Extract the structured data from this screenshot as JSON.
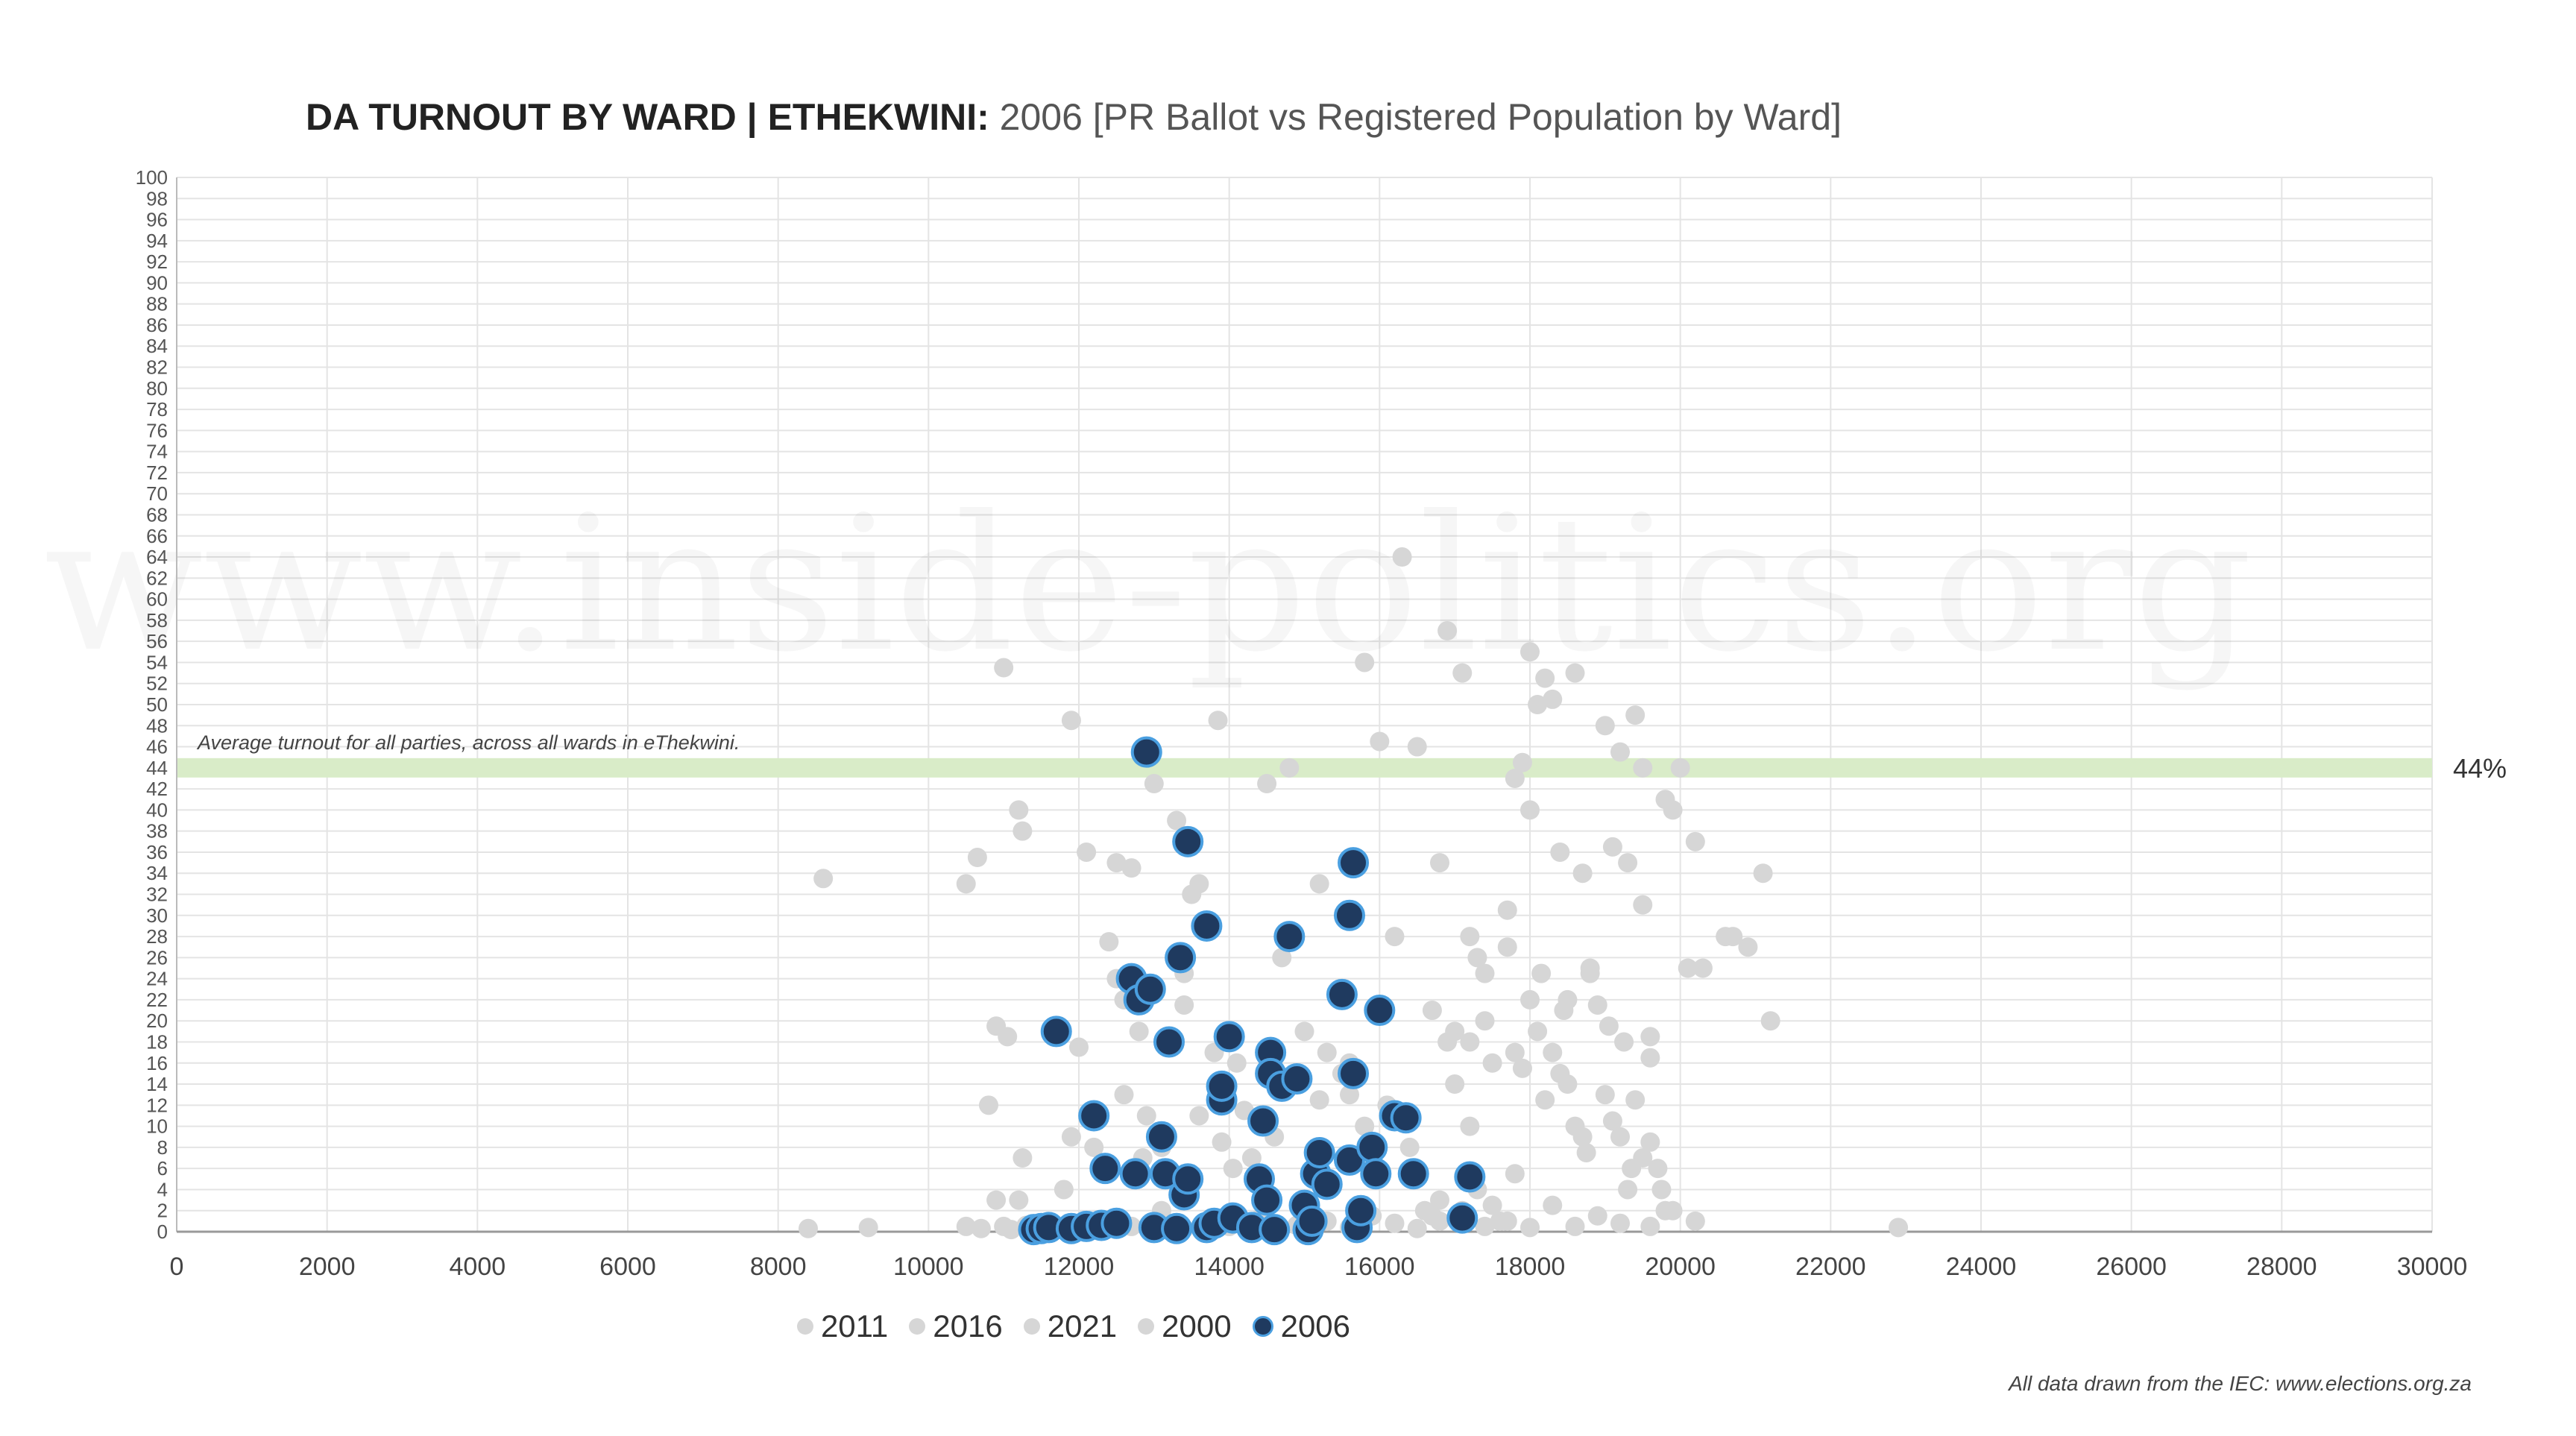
{
  "title": {
    "main": "DA TURNOUT BY WARD | ETHEKWINI:",
    "sub": "2006 [PR Ballot vs Registered Population by Ward]"
  },
  "watermark": "www.inside-politics.org",
  "source_note": "All data drawn from the IEC: www.elections.org.za",
  "average_line": {
    "label": "Average turnout for all parties, across all wards in eThekwini.",
    "value_label": "44%",
    "color": "#d9ecc8"
  },
  "colors": {
    "background_series": "#d6d6d6",
    "highlight_fill": "#1f3a5f",
    "highlight_stroke": "#4a9fe0",
    "grid": "#e4e4e4",
    "axis_text": "#555555"
  },
  "chart_data": {
    "type": "scatter",
    "title": "DA TURNOUT BY WARD | ETHEKWINI: 2006 [PR Ballot vs Registered Population by Ward]",
    "xlim": [
      0,
      30000
    ],
    "ylim": [
      0,
      100
    ],
    "x_ticks": [
      0,
      2000,
      4000,
      6000,
      8000,
      10000,
      12000,
      14000,
      16000,
      18000,
      20000,
      22000,
      24000,
      26000,
      28000,
      30000
    ],
    "y_ticks": [
      0,
      2,
      4,
      6,
      8,
      10,
      12,
      14,
      16,
      18,
      20,
      22,
      24,
      26,
      28,
      30,
      32,
      34,
      36,
      38,
      40,
      42,
      44,
      46,
      48,
      50,
      52,
      54,
      56,
      58,
      60,
      62,
      64,
      66,
      68,
      70,
      72,
      74,
      76,
      78,
      80,
      82,
      84,
      86,
      88,
      90,
      92,
      94,
      96,
      98,
      100
    ],
    "grid": true,
    "legend_position": "bottom",
    "reference_line": {
      "y": 44,
      "label": "44%"
    },
    "series": [
      {
        "name": "2011",
        "color": "#d6d6d6",
        "points": [
          [
            8400,
            0.3
          ],
          [
            9200,
            0.4
          ],
          [
            10500,
            0.5
          ],
          [
            10700,
            0.3
          ],
          [
            11000,
            0.5
          ],
          [
            11100,
            0.2
          ],
          [
            11250,
            7
          ],
          [
            11200,
            40
          ],
          [
            11250,
            38
          ],
          [
            11000,
            53.5
          ],
          [
            10800,
            12
          ],
          [
            10900,
            19.5
          ],
          [
            11050,
            18.5
          ],
          [
            10900,
            3
          ],
          [
            11200,
            3
          ],
          [
            11300,
            0.6
          ],
          [
            11450,
            0.4
          ],
          [
            11800,
            4
          ],
          [
            11900,
            9
          ],
          [
            12000,
            17.5
          ],
          [
            12100,
            36
          ],
          [
            12200,
            8
          ],
          [
            12400,
            27.5
          ],
          [
            12500,
            24
          ],
          [
            12500,
            35
          ],
          [
            12600,
            22
          ],
          [
            12700,
            34.5
          ],
          [
            12800,
            19
          ],
          [
            12850,
            7
          ],
          [
            12900,
            11
          ],
          [
            13000,
            42.5
          ],
          [
            13100,
            8
          ],
          [
            13200,
            5.5
          ],
          [
            13300,
            39
          ],
          [
            13400,
            24.5
          ],
          [
            13400,
            21.5
          ],
          [
            13500,
            32
          ],
          [
            13600,
            11
          ],
          [
            13800,
            17
          ],
          [
            13850,
            48.5
          ],
          [
            13900,
            8.5
          ],
          [
            14100,
            16
          ],
          [
            14200,
            11.5
          ],
          [
            14300,
            7
          ],
          [
            14500,
            42.5
          ],
          [
            14600,
            9
          ],
          [
            14700,
            26
          ],
          [
            14800,
            44
          ],
          [
            15000,
            19
          ],
          [
            15200,
            33
          ],
          [
            15300,
            17
          ],
          [
            15500,
            15
          ],
          [
            15600,
            13
          ],
          [
            15800,
            54
          ],
          [
            15800,
            10
          ],
          [
            16000,
            46.5
          ],
          [
            16200,
            28
          ],
          [
            16400,
            8
          ],
          [
            16500,
            46
          ],
          [
            16700,
            21
          ],
          [
            16800,
            35
          ],
          [
            16900,
            57
          ],
          [
            17100,
            53
          ],
          [
            17200,
            28
          ],
          [
            17300,
            26
          ],
          [
            17400,
            24.5
          ],
          [
            17500,
            16
          ],
          [
            17700,
            30.5
          ],
          [
            17800,
            43
          ],
          [
            17900,
            44.5
          ],
          [
            18000,
            40
          ]
        ]
      },
      {
        "name": "2016",
        "color": "#d6d6d6",
        "points": [
          [
            8600,
            33.5
          ],
          [
            10500,
            33
          ],
          [
            10650,
            35.5
          ],
          [
            11900,
            48.5
          ],
          [
            12600,
            13
          ],
          [
            13600,
            33
          ],
          [
            14050,
            6
          ],
          [
            14500,
            3.5
          ],
          [
            14800,
            14
          ],
          [
            15200,
            12.5
          ],
          [
            15300,
            5
          ],
          [
            15600,
            16
          ],
          [
            16100,
            12
          ],
          [
            16300,
            64
          ],
          [
            16600,
            2
          ],
          [
            16700,
            1.5
          ],
          [
            16800,
            3
          ],
          [
            16900,
            18
          ],
          [
            17000,
            19
          ],
          [
            17000,
            14
          ],
          [
            17200,
            18
          ],
          [
            17200,
            10
          ],
          [
            17300,
            4
          ],
          [
            17400,
            20
          ],
          [
            17500,
            2.5
          ],
          [
            17600,
            1
          ],
          [
            17800,
            5.5
          ],
          [
            18000,
            55
          ],
          [
            18100,
            50
          ],
          [
            18200,
            52.5
          ],
          [
            18300,
            50.5
          ],
          [
            18400,
            36
          ],
          [
            18500,
            22
          ],
          [
            18600,
            53
          ],
          [
            18700,
            34
          ],
          [
            18800,
            24.5
          ],
          [
            19000,
            48
          ],
          [
            19100,
            36.5
          ],
          [
            19200,
            45.5
          ],
          [
            19300,
            35
          ],
          [
            19400,
            49
          ],
          [
            19500,
            44
          ],
          [
            19500,
            31
          ],
          [
            19600,
            18.5
          ],
          [
            19600,
            16.5
          ],
          [
            19800,
            41
          ],
          [
            19900,
            40
          ],
          [
            20000,
            44
          ],
          [
            20100,
            25
          ],
          [
            20200,
            37
          ],
          [
            20300,
            25
          ],
          [
            20600,
            28
          ],
          [
            20700,
            28
          ],
          [
            20900,
            27
          ],
          [
            21100,
            34
          ],
          [
            21200,
            20
          ]
        ]
      },
      {
        "name": "2021",
        "color": "#d6d6d6",
        "points": [
          [
            11400,
            0.4
          ],
          [
            12100,
            0.8
          ],
          [
            12700,
            0.5
          ],
          [
            13100,
            2
          ],
          [
            13400,
            0.3
          ],
          [
            13700,
            1
          ],
          [
            14000,
            0.5
          ],
          [
            14400,
            1.2
          ],
          [
            14900,
            0.6
          ],
          [
            15300,
            1
          ],
          [
            15600,
            0.4
          ],
          [
            15900,
            1.5
          ],
          [
            16200,
            0.8
          ],
          [
            16500,
            0.3
          ],
          [
            16800,
            1
          ],
          [
            17100,
            2
          ],
          [
            17400,
            0.5
          ],
          [
            17700,
            1
          ],
          [
            18000,
            0.4
          ],
          [
            18300,
            2.5
          ],
          [
            18600,
            0.5
          ],
          [
            18900,
            1.5
          ],
          [
            19200,
            0.8
          ],
          [
            19600,
            0.5
          ],
          [
            19900,
            2
          ],
          [
            20200,
            1
          ],
          [
            22900,
            0.4
          ]
        ]
      },
      {
        "name": "2000",
        "color": "#d6d6d6",
        "points": [
          [
            17700,
            27
          ],
          [
            17800,
            17
          ],
          [
            17900,
            15.5
          ],
          [
            18000,
            22
          ],
          [
            18100,
            19
          ],
          [
            18150,
            24.5
          ],
          [
            18200,
            12.5
          ],
          [
            18300,
            17
          ],
          [
            18400,
            15
          ],
          [
            18450,
            21
          ],
          [
            18500,
            14
          ],
          [
            18600,
            10
          ],
          [
            18700,
            9
          ],
          [
            18750,
            7.5
          ],
          [
            18800,
            25
          ],
          [
            18900,
            21.5
          ],
          [
            19000,
            13
          ],
          [
            19050,
            19.5
          ],
          [
            19100,
            10.5
          ],
          [
            19200,
            9
          ],
          [
            19250,
            18
          ],
          [
            19300,
            4
          ],
          [
            19350,
            6
          ],
          [
            19400,
            12.5
          ],
          [
            19500,
            7
          ],
          [
            19600,
            8.5
          ],
          [
            19700,
            6
          ],
          [
            19750,
            4
          ],
          [
            19800,
            2
          ]
        ]
      },
      {
        "name": "2006",
        "color": "#1f3a5f",
        "points": [
          [
            11400,
            0.2
          ],
          [
            11500,
            0.3
          ],
          [
            11600,
            0.4
          ],
          [
            11700,
            19
          ],
          [
            11900,
            0.3
          ],
          [
            12100,
            0.5
          ],
          [
            12200,
            11
          ],
          [
            12300,
            0.6
          ],
          [
            12350,
            6
          ],
          [
            12500,
            0.8
          ],
          [
            12700,
            24
          ],
          [
            12750,
            5.5
          ],
          [
            12800,
            22
          ],
          [
            12900,
            45.5
          ],
          [
            12950,
            23
          ],
          [
            13000,
            0.4
          ],
          [
            13100,
            9
          ],
          [
            13150,
            5.5
          ],
          [
            13200,
            18
          ],
          [
            13300,
            0.3
          ],
          [
            13350,
            26
          ],
          [
            13400,
            3.5
          ],
          [
            13450,
            37
          ],
          [
            13450,
            5
          ],
          [
            13700,
            0.4
          ],
          [
            13700,
            29
          ],
          [
            13800,
            0.8
          ],
          [
            13900,
            12.5
          ],
          [
            13900,
            13.8
          ],
          [
            14000,
            18.5
          ],
          [
            14050,
            1.3
          ],
          [
            14300,
            0.4
          ],
          [
            14400,
            5
          ],
          [
            14450,
            10.5
          ],
          [
            14500,
            3
          ],
          [
            14550,
            17
          ],
          [
            14550,
            15
          ],
          [
            14600,
            0.2
          ],
          [
            14700,
            13.8
          ],
          [
            14800,
            28
          ],
          [
            14900,
            14.5
          ],
          [
            15000,
            2.5
          ],
          [
            15050,
            0.2
          ],
          [
            15100,
            1
          ],
          [
            15150,
            5.5
          ],
          [
            15200,
            7.5
          ],
          [
            15300,
            4.5
          ],
          [
            15500,
            22.5
          ],
          [
            15600,
            6.8
          ],
          [
            15600,
            30
          ],
          [
            15650,
            35
          ],
          [
            15650,
            15
          ],
          [
            15700,
            0.4
          ],
          [
            15750,
            2
          ],
          [
            15900,
            8
          ],
          [
            15950,
            5.5
          ],
          [
            16000,
            21
          ],
          [
            16200,
            11
          ],
          [
            16350,
            10.8
          ],
          [
            16450,
            5.5
          ],
          [
            17100,
            1.3
          ],
          [
            17200,
            5.2
          ]
        ]
      }
    ]
  }
}
